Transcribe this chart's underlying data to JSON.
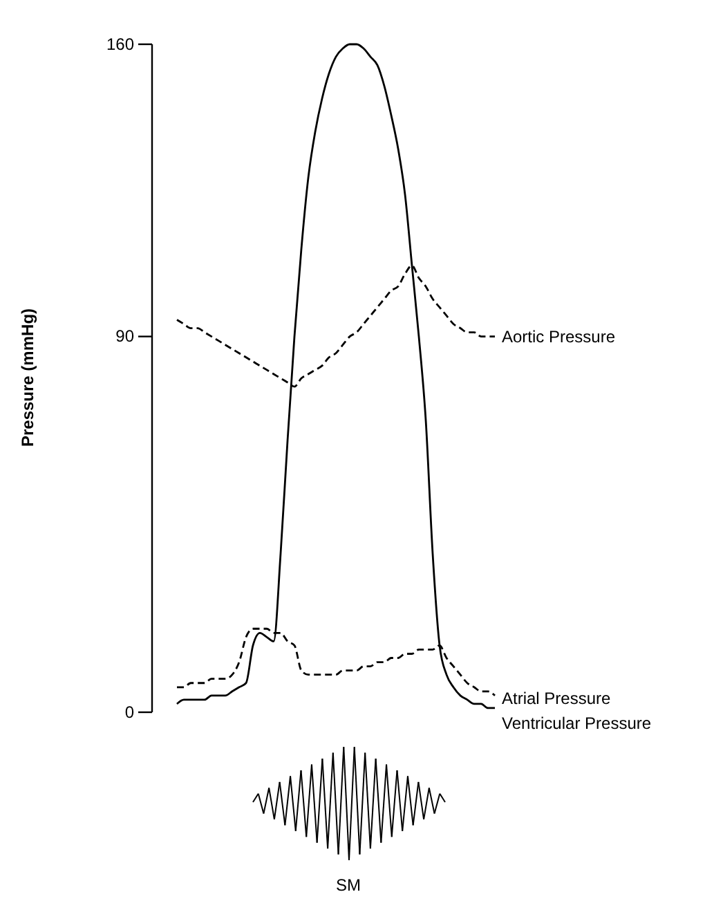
{
  "chart_data": {
    "type": "line",
    "ylabel": "Pressure (mmHg)",
    "categories": [
      null,
      null,
      null,
      null,
      null,
      null,
      null,
      null,
      null,
      null,
      null,
      null,
      null,
      null,
      null,
      null,
      null,
      null,
      null,
      null,
      null,
      null,
      null,
      null,
      null,
      null,
      null,
      null,
      null,
      null,
      null,
      null,
      null,
      null,
      null,
      null,
      null,
      null,
      null,
      null,
      null,
      null,
      null,
      null,
      null,
      null,
      null
    ],
    "series": [
      {
        "name": "Aortic Pressure",
        "color": "#000000",
        "line_style": "dashed",
        "values": [
          94,
          93,
          92,
          92,
          91,
          90,
          89,
          88,
          87,
          86,
          85,
          84,
          83,
          82,
          81,
          80,
          79,
          78,
          80,
          81,
          82,
          83,
          85,
          86,
          88,
          90,
          91,
          93,
          95,
          97,
          99,
          101,
          102,
          105,
          107,
          104,
          102,
          99,
          97,
          95,
          93,
          92,
          91,
          91,
          90,
          90,
          90
        ]
      },
      {
        "name": "Atrial Pressure",
        "color": "#000000",
        "line_style": "dashed",
        "values": [
          6,
          6,
          7,
          7,
          7,
          8,
          8,
          8,
          9,
          12,
          18,
          20,
          20,
          20,
          19,
          19,
          17,
          16,
          10,
          9,
          9,
          9,
          9,
          9,
          10,
          10,
          10,
          11,
          11,
          12,
          12,
          13,
          13,
          14,
          14,
          15,
          15,
          15,
          16,
          13,
          11,
          9,
          7,
          6,
          5,
          5,
          4
        ]
      },
      {
        "name": "Ventricular Pressure",
        "color": "#000000",
        "line_style": "solid",
        "values": [
          2,
          3,
          3,
          3,
          3,
          4,
          4,
          4,
          5,
          6,
          7,
          16,
          19,
          18,
          17,
          38,
          65,
          90,
          111,
          128,
          139,
          147,
          153,
          157,
          159,
          160,
          160,
          159,
          157,
          155,
          150,
          143,
          135,
          124,
          107,
          90,
          70,
          38,
          16,
          9,
          6,
          4,
          3,
          2,
          2,
          1,
          1
        ]
      }
    ],
    "ylim": [
      0,
      160
    ],
    "yticks": [
      0,
      90,
      160
    ],
    "tick_labels": "y",
    "legend": false,
    "annotations": [
      "SM"
    ]
  }
}
